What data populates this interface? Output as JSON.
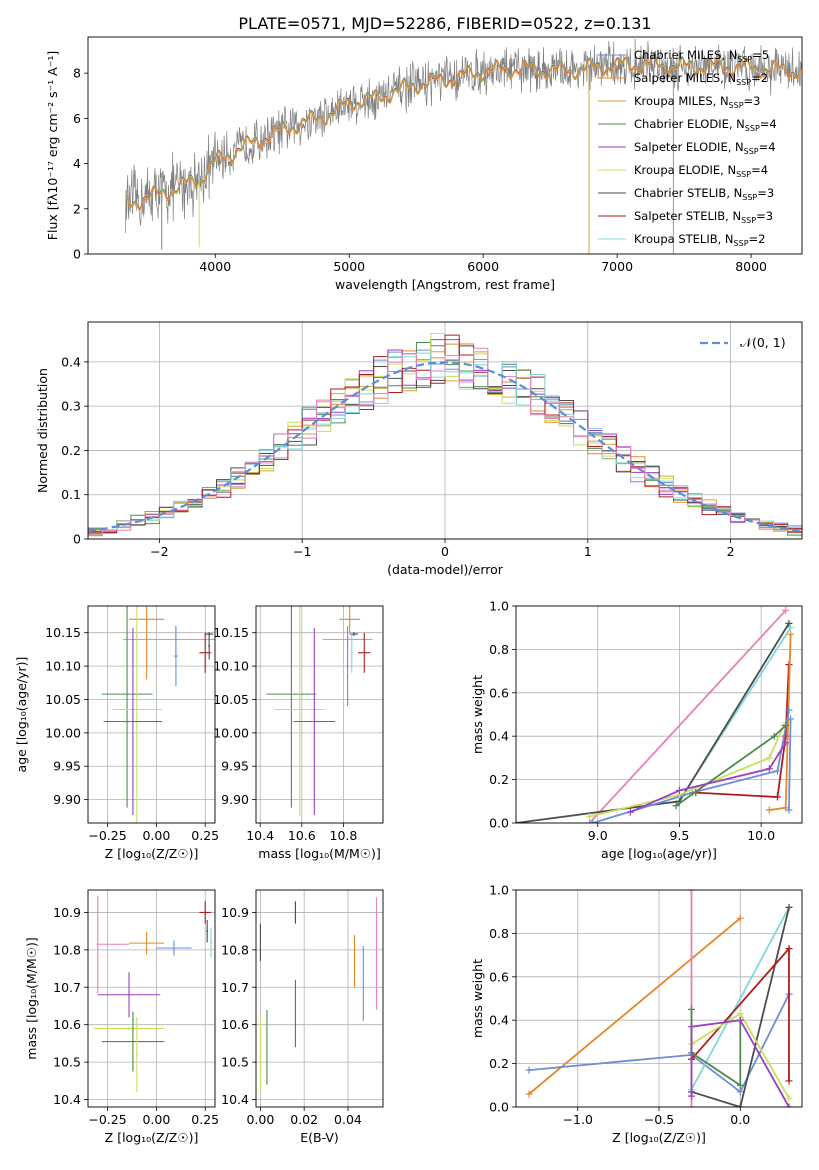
{
  "title": "PLATE=0571, MJD=52286, FIBERID=0522, z=0.131",
  "colors": {
    "chabrier_miles": "#6a8fd8",
    "salpeter_miles": "#e8862a",
    "kroupa_miles": "#d9a53c",
    "chabrier_elodie": "#4f8a4f",
    "salpeter_elodie": "#9b3fc4",
    "kroupa_elodie": "#c8e05a",
    "chabrier_stelib": "#4d4d4d",
    "salpeter_stelib": "#b01c1c",
    "kroupa_stelib": "#7fd8dc",
    "pink": "#e87fb8",
    "gaussian": "#5b8ed8",
    "data_grey": "#808080",
    "grid": "#b0b0b0"
  },
  "chart_data": [
    {
      "id": "spectrum",
      "type": "line",
      "xlabel": "wavelength [Angstrom, rest frame]",
      "ylabel": "Flux [fλ10⁻¹⁷ erg cm⁻² s⁻¹ A⁻¹]",
      "xlim": [
        3050,
        8380
      ],
      "ylim": [
        0,
        9.6
      ],
      "xticks": [
        4000,
        5000,
        6000,
        7000,
        8000
      ],
      "yticks": [
        0,
        2,
        4,
        6,
        8
      ],
      "grid": false,
      "legend_position": "top-right",
      "legend": [
        {
          "label": "Chabrier MILES, N",
          "sub": "SSP",
          "tail": "=5",
          "color": "chabrier_miles"
        },
        {
          "label": "Salpeter MILES, N",
          "sub": "SSP",
          "tail": "=2",
          "color": "salpeter_miles"
        },
        {
          "label": "Kroupa MILES, N",
          "sub": "SSP",
          "tail": "=3",
          "color": "kroupa_miles"
        },
        {
          "label": "Chabrier ELODIE, N",
          "sub": "SSP",
          "tail": "=4",
          "color": "chabrier_elodie"
        },
        {
          "label": "Salpeter ELODIE, N",
          "sub": "SSP",
          "tail": "=4",
          "color": "salpeter_elodie"
        },
        {
          "label": "Kroupa ELODIE, N",
          "sub": "SSP",
          "tail": "=4",
          "color": "kroupa_elodie"
        },
        {
          "label": "Chabrier STELIB, N",
          "sub": "SSP",
          "tail": "=3",
          "color": "chabrier_stelib"
        },
        {
          "label": "Salpeter STELIB, N",
          "sub": "SSP",
          "tail": "=3",
          "color": "salpeter_stelib"
        },
        {
          "label": "Kroupa STELIB, N",
          "sub": "SSP",
          "tail": "=2",
          "color": "kroupa_stelib"
        }
      ],
      "continuum": [
        [
          3330,
          2.2
        ],
        [
          3500,
          2.5
        ],
        [
          3700,
          2.9
        ],
        [
          3900,
          3.4
        ],
        [
          4000,
          4.1
        ],
        [
          4300,
          5.0
        ],
        [
          4600,
          5.7
        ],
        [
          4860,
          6.2
        ],
        [
          5000,
          6.7
        ],
        [
          5200,
          6.9
        ],
        [
          5500,
          7.5
        ],
        [
          5800,
          7.8
        ],
        [
          6000,
          8.1
        ],
        [
          6300,
          8.2
        ],
        [
          6600,
          8.1
        ],
        [
          6900,
          8.3
        ],
        [
          7200,
          8.4
        ],
        [
          7500,
          8.3
        ],
        [
          7800,
          8.3
        ],
        [
          8100,
          8.2
        ],
        [
          8380,
          8.1
        ]
      ],
      "spikes": [
        [
          6790,
          0.0,
          "kroupa_miles"
        ],
        [
          7420,
          0.0,
          "salpeter_miles"
        ],
        [
          3880,
          0.3,
          "kroupa_elodie"
        ],
        [
          3600,
          0.2,
          "data_grey"
        ]
      ]
    },
    {
      "id": "residuals",
      "type": "histogram",
      "xlabel": "(data-model)/error",
      "ylabel": "Normed distribution",
      "xlim": [
        -2.5,
        2.5
      ],
      "ylim": [
        0,
        0.49
      ],
      "xticks": [
        -2,
        -1,
        0,
        1,
        2
      ],
      "yticks": [
        0.0,
        0.1,
        0.2,
        0.3,
        0.4
      ],
      "grid": true,
      "bin_width": 0.1,
      "legend_position": "top-right",
      "gaussian_label": "𝒩(0, 1)",
      "series_colors": [
        "chabrier_miles",
        "salpeter_miles",
        "kroupa_miles",
        "chabrier_elodie",
        "salpeter_elodie",
        "kroupa_elodie",
        "chabrier_stelib",
        "salpeter_stelib",
        "kroupa_stelib",
        "pink"
      ]
    },
    {
      "id": "age_z",
      "type": "errorbar",
      "xlabel": "Z [log₁₀(Z/Z☉)]",
      "ylabel": "age  [log₁₀(age/yr)]",
      "xlim": [
        -0.35,
        0.3
      ],
      "ylim": [
        9.865,
        10.19
      ],
      "xticks": [
        -0.25,
        0.0,
        0.25
      ],
      "xticklabels": [
        "−0.25",
        "0.00",
        "0.25"
      ],
      "yticks": [
        9.9,
        9.95,
        10.0,
        10.05,
        10.1,
        10.15
      ],
      "yticklabels": [
        "9.90",
        "9.95",
        "10.00",
        "10.05",
        "10.10",
        "10.15"
      ],
      "points": [
        {
          "x": -0.05,
          "y": 10.17,
          "xerr": 0.09,
          "yerr": 0.09,
          "color": "salpeter_miles"
        },
        {
          "x": 0.1,
          "y": 10.14,
          "xerr": 0.27,
          "yerr": 0.02,
          "color": "pink"
        },
        {
          "x": 0.1,
          "y": 10.115,
          "xerr": 0.01,
          "yerr": 0.045,
          "color": "chabrier_miles"
        },
        {
          "x": 0.25,
          "y": 10.12,
          "xerr": 0.03,
          "yerr": 0.03,
          "color": "salpeter_stelib"
        },
        {
          "x": 0.27,
          "y": 10.148,
          "xerr": 0.02,
          "yerr": 0.003,
          "color": "chabrier_stelib"
        },
        {
          "x": 0.27,
          "y": 10.13,
          "xerr": 0.005,
          "yerr": 0.02,
          "color": "chabrier_stelib"
        },
        {
          "x": -0.15,
          "y": 10.058,
          "xerr": 0.13,
          "yerr": 0.17,
          "color": "chabrier_elodie"
        },
        {
          "x": -0.1,
          "y": 10.035,
          "xerr": 0.13,
          "yerr": 0.17,
          "color": "kroupa_elodie"
        },
        {
          "x": -0.12,
          "y": 10.017,
          "xerr": 0.15,
          "yerr": 0.14,
          "color": "salpeter_elodie"
        }
      ]
    },
    {
      "id": "age_mass",
      "type": "errorbar",
      "xlabel": "mass [log₁₀(M/M☉)]",
      "ylabel": "",
      "xlim": [
        10.38,
        10.99
      ],
      "ylim": [
        9.865,
        10.19
      ],
      "xticks": [
        10.4,
        10.6,
        10.8
      ],
      "xticklabels": [
        "10.4",
        "10.6",
        "10.8"
      ],
      "yticks": [
        9.9,
        9.95,
        10.0,
        10.05,
        10.1,
        10.15
      ],
      "yticklabels": [
        "9.90",
        "9.95",
        "10.00",
        "10.05",
        "10.10",
        "10.15"
      ],
      "points": [
        {
          "x": 10.83,
          "y": 10.17,
          "xerr": 0.05,
          "yerr": 0.02,
          "color": "salpeter_miles"
        },
        {
          "x": 10.82,
          "y": 10.14,
          "xerr": 0.12,
          "yerr": 0.005,
          "color": "pink"
        },
        {
          "x": 10.82,
          "y": 10.1,
          "xerr": 0.005,
          "yerr": 0.06,
          "color": "chabrier_miles"
        },
        {
          "x": 10.85,
          "y": 10.148,
          "xerr": 0.02,
          "yerr": 0.003,
          "color": "chabrier_stelib"
        },
        {
          "x": 10.84,
          "y": 10.12,
          "xerr": 0.005,
          "yerr": 0.03,
          "color": "kroupa_stelib"
        },
        {
          "x": 10.9,
          "y": 10.12,
          "xerr": 0.03,
          "yerr": 0.03,
          "color": "salpeter_stelib"
        },
        {
          "x": 10.55,
          "y": 10.058,
          "xerr": 0.12,
          "yerr": 0.17,
          "color": "chabrier_elodie"
        },
        {
          "x": 10.59,
          "y": 10.035,
          "xerr": 0.12,
          "yerr": 0.16,
          "color": "kroupa_elodie"
        },
        {
          "x": 10.66,
          "y": 10.017,
          "xerr": 0.1,
          "yerr": 0.14,
          "color": "salpeter_elodie"
        }
      ]
    },
    {
      "id": "weight_age",
      "type": "line",
      "xlabel": "age  [log₁₀(age/yr)]",
      "ylabel": "mass weight",
      "xlim": [
        8.5,
        10.25
      ],
      "ylim": [
        0,
        1.0
      ],
      "xticks": [
        9.0,
        9.5,
        10.0
      ],
      "xticklabels": [
        "9.0",
        "9.5",
        "10.0"
      ],
      "yticks": [
        0,
        0.2,
        0.4,
        0.6,
        0.8,
        1.0
      ],
      "yticklabels": [
        "0.0",
        "0.2",
        "0.4",
        "0.6",
        "0.8",
        "1.0"
      ],
      "series": [
        {
          "color": "pink",
          "points": [
            [
              8.95,
              0.0
            ],
            [
              10.15,
              0.98
            ]
          ]
        },
        {
          "color": "kroupa_stelib",
          "points": [
            [
              9.48,
              0.08
            ],
            [
              10.18,
              0.9
            ]
          ]
        },
        {
          "color": "chabrier_stelib",
          "points": [
            [
              8.5,
              0.0
            ],
            [
              9.5,
              0.1
            ],
            [
              10.17,
              0.92
            ]
          ]
        },
        {
          "color": "salpeter_stelib",
          "points": [
            [
              9.6,
              0.14
            ],
            [
              10.1,
              0.12
            ],
            [
              10.15,
              0.4
            ],
            [
              10.17,
              0.73
            ]
          ]
        },
        {
          "color": "salpeter_miles",
          "points": [
            [
              10.05,
              0.06
            ],
            [
              10.15,
              0.07
            ],
            [
              10.18,
              0.87
            ]
          ]
        },
        {
          "color": "chabrier_miles",
          "points": [
            [
              8.97,
              0.0
            ],
            [
              9.58,
              0.14
            ],
            [
              10.1,
              0.24
            ],
            [
              10.17,
              0.52
            ]
          ]
        },
        {
          "color": "kroupa_elodie",
          "points": [
            [
              8.95,
              0.03
            ],
            [
              9.5,
              0.13
            ],
            [
              10.05,
              0.3
            ],
            [
              10.14,
              0.45
            ]
          ]
        },
        {
          "color": "chabrier_elodie",
          "points": [
            [
              9.48,
              0.08
            ],
            [
              10.08,
              0.4
            ],
            [
              10.15,
              0.45
            ]
          ]
        },
        {
          "color": "salpeter_elodie",
          "points": [
            [
              9.2,
              0.05
            ],
            [
              9.5,
              0.15
            ],
            [
              10.05,
              0.25
            ],
            [
              10.15,
              0.37
            ]
          ]
        },
        {
          "color": "chabrier_miles",
          "points": [
            [
              10.17,
              0.06
            ],
            [
              10.18,
              0.48
            ]
          ]
        }
      ]
    },
    {
      "id": "mass_z",
      "type": "errorbar",
      "xlabel": "Z [log₁₀(Z/Z☉)]",
      "ylabel": "mass [log₁₀(M/M☉)]",
      "xlim": [
        -0.35,
        0.3
      ],
      "ylim": [
        10.38,
        10.96
      ],
      "xticks": [
        -0.25,
        0.0,
        0.25
      ],
      "xticklabels": [
        "−0.25",
        "0.00",
        "0.25"
      ],
      "yticks": [
        10.4,
        10.5,
        10.6,
        10.7,
        10.8,
        10.9
      ],
      "yticklabels": [
        "10.4",
        "10.5",
        "10.6",
        "10.7",
        "10.8",
        "10.9"
      ],
      "points": [
        {
          "x": -0.05,
          "y": 10.818,
          "xerr": 0.09,
          "yerr": 0.03,
          "color": "salpeter_miles"
        },
        {
          "x": -0.3,
          "y": 10.815,
          "xerr": 0.005,
          "yerr": 0.13,
          "color": "pink"
        },
        {
          "x": -0.22,
          "y": 10.815,
          "xerr": 0.08,
          "yerr": 0.002,
          "color": "pink"
        },
        {
          "x": 0.09,
          "y": 10.805,
          "xerr": 0.09,
          "yerr": 0.02,
          "color": "chabrier_miles"
        },
        {
          "x": 0.25,
          "y": 10.9,
          "xerr": 0.03,
          "yerr": 0.03,
          "color": "salpeter_stelib"
        },
        {
          "x": 0.26,
          "y": 10.85,
          "xerr": 0.005,
          "yerr": 0.03,
          "color": "chabrier_stelib"
        },
        {
          "x": 0.28,
          "y": 10.82,
          "xerr": 0.005,
          "yerr": 0.04,
          "color": "kroupa_stelib"
        },
        {
          "x": -0.14,
          "y": 10.68,
          "xerr": 0.16,
          "yerr": 0.06,
          "color": "salpeter_elodie"
        },
        {
          "x": -0.14,
          "y": 10.59,
          "xerr": 0.18,
          "yerr": 0.005,
          "color": "kroupa_elodie"
        },
        {
          "x": -0.12,
          "y": 10.555,
          "xerr": 0.16,
          "yerr": 0.08,
          "color": "chabrier_elodie"
        },
        {
          "x": -0.1,
          "y": 10.52,
          "xerr": 0.005,
          "yerr": 0.1,
          "color": "kroupa_elodie"
        }
      ]
    },
    {
      "id": "mass_ebv",
      "type": "errorbar",
      "xlabel": "E(B-V)",
      "ylabel": "",
      "xlim": [
        -0.002,
        0.056
      ],
      "ylim": [
        10.38,
        10.96
      ],
      "xticks": [
        0.0,
        0.02,
        0.04
      ],
      "xticklabels": [
        "0.00",
        "0.02",
        "0.04"
      ],
      "yticks": [
        10.4,
        10.5,
        10.6,
        10.7,
        10.8,
        10.9
      ],
      "yticklabels": [
        "10.4",
        "10.5",
        "10.6",
        "10.7",
        "10.8",
        "10.9"
      ],
      "points": [
        {
          "x": 0.0,
          "y": 10.82,
          "xerr": 0.0,
          "yerr": 0.05,
          "color": "chabrier_stelib"
        },
        {
          "x": 0.0,
          "y": 10.52,
          "xerr": 0.0,
          "yerr": 0.1,
          "color": "kroupa_elodie"
        },
        {
          "x": 0.003,
          "y": 10.54,
          "xerr": 0.0,
          "yerr": 0.1,
          "color": "chabrier_elodie"
        },
        {
          "x": 0.016,
          "y": 10.9,
          "xerr": 0.0,
          "yerr": 0.03,
          "color": "salpeter_stelib"
        },
        {
          "x": 0.016,
          "y": 10.63,
          "xerr": 0.0,
          "yerr": 0.09,
          "color": "salpeter_elodie"
        },
        {
          "x": 0.043,
          "y": 10.77,
          "xerr": 0.0,
          "yerr": 0.07,
          "color": "salpeter_miles"
        },
        {
          "x": 0.047,
          "y": 10.71,
          "xerr": 0.0,
          "yerr": 0.1,
          "color": "chabrier_miles"
        },
        {
          "x": 0.053,
          "y": 10.79,
          "xerr": 0.0,
          "yerr": 0.15,
          "color": "pink"
        }
      ]
    },
    {
      "id": "weight_z",
      "type": "line",
      "xlabel": "Z [log₁₀(Z/Z☉)]",
      "ylabel": "mass weight",
      "xlim": [
        -1.38,
        0.38
      ],
      "ylim": [
        0,
        1.0
      ],
      "xticks": [
        -1.0,
        -0.5,
        0.0
      ],
      "xticklabels": [
        "−1.0",
        "−0.5",
        "0.0"
      ],
      "yticks": [
        0,
        0.2,
        0.4,
        0.6,
        0.8,
        1.0
      ],
      "yticklabels": [
        "0.0",
        "0.2",
        "0.4",
        "0.6",
        "0.8",
        "1.0"
      ],
      "series": [
        {
          "color": "salpeter_miles",
          "points": [
            [
              -1.3,
              0.06
            ],
            [
              0.0,
              0.87
            ]
          ]
        },
        {
          "color": "chabrier_miles",
          "points": [
            [
              -1.3,
              0.17
            ],
            [
              -0.3,
              0.24
            ],
            [
              0.0,
              0.07
            ],
            [
              0.3,
              0.52
            ]
          ]
        },
        {
          "color": "pink",
          "points": [
            [
              -0.3,
              1.0
            ],
            [
              -0.3,
              0.0
            ]
          ]
        },
        {
          "color": "kroupa_stelib",
          "points": [
            [
              -0.3,
              0.08
            ],
            [
              0.3,
              0.92
            ]
          ]
        },
        {
          "color": "chabrier_stelib",
          "points": [
            [
              -0.3,
              0.07
            ],
            [
              0.0,
              0.0
            ],
            [
              0.3,
              0.92
            ]
          ]
        },
        {
          "color": "salpeter_stelib",
          "points": [
            [
              -0.3,
              0.22
            ],
            [
              0.3,
              0.73
            ],
            [
              0.3,
              0.12
            ]
          ]
        },
        {
          "color": "kroupa_elodie",
          "points": [
            [
              -0.3,
              0.29
            ],
            [
              0.0,
              0.43
            ],
            [
              0.3,
              0.04
            ]
          ]
        },
        {
          "color": "chabrier_elodie",
          "points": [
            [
              -0.3,
              0.45
            ],
            [
              -0.3,
              0.25
            ],
            [
              0.0,
              0.1
            ],
            [
              0.0,
              0.4
            ]
          ]
        },
        {
          "color": "salpeter_elodie",
          "points": [
            [
              -0.3,
              0.05
            ],
            [
              -0.3,
              0.37
            ],
            [
              0.0,
              0.4
            ],
            [
              0.3,
              0.0
            ]
          ]
        }
      ]
    }
  ]
}
